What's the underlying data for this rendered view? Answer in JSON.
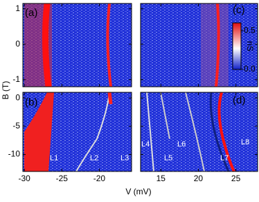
{
  "chart_data": [
    {
      "type": "heatmap",
      "label": "(a)",
      "xlim": [
        -30.2,
        -15.7
      ],
      "ylim": [
        -1.2,
        1.15
      ],
      "yticks": [
        -1,
        0,
        1
      ]
    },
    {
      "type": "heatmap",
      "label": "(b)",
      "xlim": [
        -30.2,
        -15.7
      ],
      "ylim": [
        -13,
        1
      ],
      "xticks": [
        -30,
        -25,
        -20
      ],
      "yticks": [
        -10,
        -5,
        0
      ],
      "annotations": [
        "L1",
        "L2",
        "L3"
      ]
    },
    {
      "type": "heatmap",
      "label": "(c)",
      "xlim": [
        12.3,
        27.9
      ],
      "ylim": [
        -1.2,
        1.15
      ],
      "colorbar": {
        "label": "nS",
        "lim": [
          0,
          0.6
        ],
        "ticks": [
          {
            "value": 0,
            "label": "0.0"
          },
          {
            "value": 0.5,
            "label": "0.5"
          }
        ]
      }
    },
    {
      "type": "heatmap",
      "label": "(d)",
      "xlim": [
        12.3,
        27.9
      ],
      "ylim": [
        -13,
        1
      ],
      "xticks": [
        15,
        20,
        25
      ],
      "annotations": [
        "L4",
        "L5",
        "L6",
        "L7",
        "L8"
      ]
    }
  ],
  "xlabel": "V (mV)",
  "ylabel": "B (T)"
}
